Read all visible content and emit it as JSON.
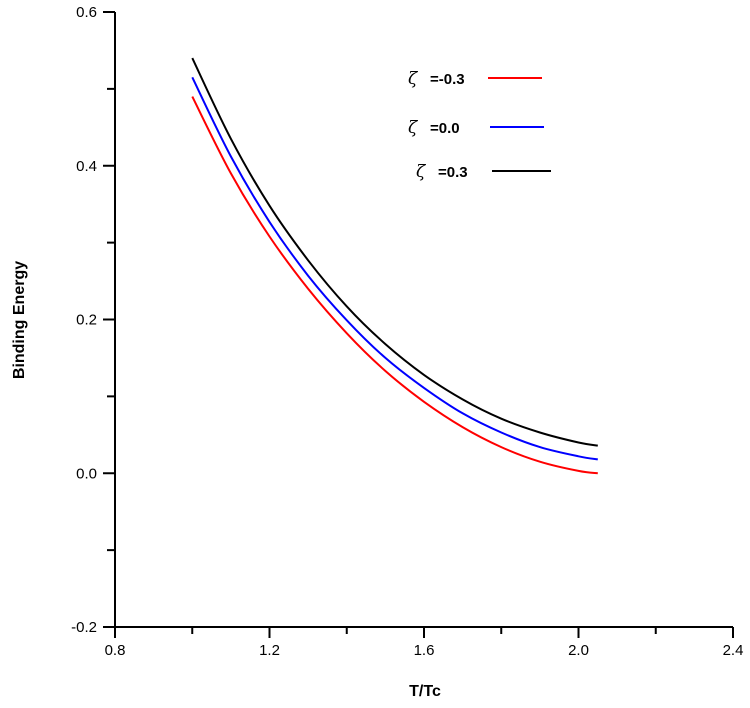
{
  "chart_data": {
    "type": "line",
    "xlabel": "T/Tc",
    "ylabel": "Binding Energy",
    "xlim": [
      0.8,
      2.4
    ],
    "ylim": [
      -0.2,
      0.6
    ],
    "x_ticks": [
      0.8,
      1.2,
      1.6,
      2.0,
      2.4
    ],
    "x_tick_labels": [
      "0.8",
      "1.2",
      "1.6",
      "2.0",
      "2.4"
    ],
    "y_ticks": [
      -0.2,
      0.0,
      0.2,
      0.4,
      0.6
    ],
    "y_tick_labels": [
      "-0.2",
      "0.0",
      "0.2",
      "0.4",
      "0.6"
    ],
    "grid": false,
    "legend_position": "top-right",
    "series": [
      {
        "name": "=-0.3",
        "symbol": "ζ",
        "color": "#ff0000",
        "x": [
          1.0,
          1.1,
          1.2,
          1.3,
          1.4,
          1.5,
          1.6,
          1.7,
          1.8,
          1.9,
          2.0,
          2.05
        ],
        "y": [
          0.49,
          0.39,
          0.308,
          0.24,
          0.182,
          0.133,
          0.093,
          0.06,
          0.034,
          0.015,
          0.003,
          0.0
        ]
      },
      {
        "name": "=0.0",
        "symbol": "ζ",
        "color": "#0000ff",
        "x": [
          1.0,
          1.1,
          1.2,
          1.3,
          1.4,
          1.5,
          1.6,
          1.7,
          1.8,
          1.9,
          2.0,
          2.05
        ],
        "y": [
          0.515,
          0.412,
          0.327,
          0.257,
          0.199,
          0.15,
          0.111,
          0.078,
          0.053,
          0.034,
          0.022,
          0.018
        ]
      },
      {
        "name": "=0.3",
        "symbol": "ζ",
        "color": "#000000",
        "x": [
          1.0,
          1.1,
          1.2,
          1.3,
          1.4,
          1.5,
          1.6,
          1.7,
          1.8,
          1.9,
          2.0,
          2.05
        ],
        "y": [
          0.54,
          0.435,
          0.348,
          0.277,
          0.217,
          0.168,
          0.128,
          0.096,
          0.071,
          0.053,
          0.04,
          0.036
        ]
      }
    ]
  }
}
